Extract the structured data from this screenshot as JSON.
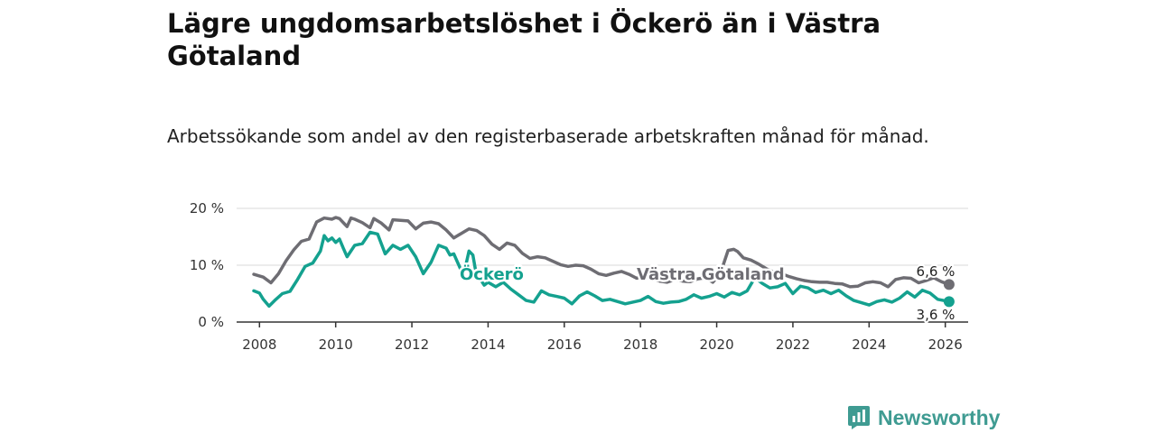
{
  "chart_data": {
    "type": "line",
    "title": "Lägre ungdomsarbetslöshet i Öckerö än i Västra Götaland",
    "subtitle": "Arbetssökande som andel av den registerbaserade arbetskraften månad för månad.",
    "xlabel": "",
    "ylabel": "",
    "xlim": [
      2007.4,
      2026.6
    ],
    "ylim": [
      0,
      20
    ],
    "grid": true,
    "yticks": [
      {
        "value": 0,
        "label": "0 %"
      },
      {
        "value": 10,
        "label": "10 %"
      },
      {
        "value": 20,
        "label": "20 %"
      }
    ],
    "xticks": [
      {
        "value": 2008,
        "label": "2008"
      },
      {
        "value": 2010,
        "label": "2010"
      },
      {
        "value": 2012,
        "label": "2012"
      },
      {
        "value": 2014,
        "label": "2014"
      },
      {
        "value": 2016,
        "label": "2016"
      },
      {
        "value": 2018,
        "label": "2018"
      },
      {
        "value": 2020,
        "label": "2020"
      },
      {
        "value": 2022,
        "label": "2022"
      },
      {
        "value": 2024,
        "label": "2024"
      },
      {
        "value": 2026,
        "label": "2026"
      }
    ],
    "series": [
      {
        "name": "Västra Götaland",
        "color": "#6e6d73",
        "end_label": "6,6 %",
        "x": [
          2007.85,
          2008.1,
          2008.3,
          2008.5,
          2008.7,
          2008.9,
          2009.1,
          2009.3,
          2009.5,
          2009.7,
          2009.9,
          2010.0,
          2010.1,
          2010.3,
          2010.4,
          2010.5,
          2010.7,
          2010.9,
          2011.0,
          2011.2,
          2011.4,
          2011.5,
          2011.7,
          2011.9,
          2012.1,
          2012.3,
          2012.5,
          2012.7,
          2012.9,
          2013.1,
          2013.3,
          2013.5,
          2013.7,
          2013.9,
          2014.1,
          2014.3,
          2014.5,
          2014.7,
          2014.9,
          2015.1,
          2015.3,
          2015.5,
          2015.7,
          2015.9,
          2016.1,
          2016.3,
          2016.5,
          2016.7,
          2016.9,
          2017.1,
          2017.3,
          2017.5,
          2017.7,
          2017.9,
          2018.1,
          2018.3,
          2018.5,
          2018.7,
          2018.9,
          2019.1,
          2019.3,
          2019.5,
          2019.7,
          2019.9,
          2020.1,
          2020.3,
          2020.45,
          2020.55,
          2020.7,
          2020.9,
          2021.1,
          2021.3,
          2021.5,
          2021.7,
          2021.9,
          2022.1,
          2022.3,
          2022.5,
          2022.7,
          2022.9,
          2023.1,
          2023.3,
          2023.5,
          2023.7,
          2023.9,
          2024.1,
          2024.3,
          2024.5,
          2024.7,
          2024.9,
          2025.1,
          2025.3,
          2025.5,
          2025.7,
          2025.9,
          2026.1
        ],
        "values": [
          8.4,
          7.9,
          6.9,
          8.5,
          10.8,
          12.7,
          14.2,
          14.6,
          17.6,
          18.3,
          18.1,
          18.4,
          18.2,
          16.8,
          18.3,
          18.1,
          17.5,
          16.6,
          18.2,
          17.4,
          16.2,
          18.0,
          17.9,
          17.8,
          16.4,
          17.4,
          17.6,
          17.3,
          16.2,
          14.8,
          15.6,
          16.4,
          16.1,
          15.2,
          13.7,
          12.8,
          13.9,
          13.5,
          12.1,
          11.2,
          11.5,
          11.3,
          10.7,
          10.1,
          9.8,
          10.0,
          9.9,
          9.3,
          8.5,
          8.2,
          8.6,
          8.9,
          8.4,
          7.7,
          8.1,
          7.5,
          7.2,
          7.0,
          7.5,
          7.2,
          7.1,
          7.6,
          7.8,
          7.0,
          8.6,
          12.6,
          12.8,
          12.4,
          11.3,
          10.9,
          10.2,
          9.4,
          8.8,
          8.5,
          8.0,
          7.6,
          7.3,
          7.1,
          7.0,
          7.0,
          6.8,
          6.7,
          6.2,
          6.3,
          6.9,
          7.1,
          6.9,
          6.2,
          7.5,
          7.8,
          7.7,
          6.9,
          7.3,
          7.8,
          7.1,
          6.6
        ]
      },
      {
        "name": "Öckerö",
        "color": "#14a18f",
        "end_label": "3,6 %",
        "x": [
          2007.85,
          2008.0,
          2008.1,
          2008.25,
          2008.4,
          2008.6,
          2008.8,
          2009.0,
          2009.2,
          2009.4,
          2009.6,
          2009.7,
          2009.8,
          2009.9,
          2010.0,
          2010.1,
          2010.2,
          2010.3,
          2010.5,
          2010.7,
          2010.9,
          2011.1,
          2011.3,
          2011.5,
          2011.7,
          2011.9,
          2012.1,
          2012.3,
          2012.5,
          2012.7,
          2012.9,
          2013.0,
          2013.1,
          2013.2,
          2013.3,
          2013.4,
          2013.5,
          2013.6,
          2013.7,
          2013.8,
          2013.9,
          2014.0,
          2014.2,
          2014.4,
          2014.6,
          2014.8,
          2015.0,
          2015.2,
          2015.4,
          2015.6,
          2015.8,
          2016.0,
          2016.2,
          2016.4,
          2016.6,
          2016.8,
          2017.0,
          2017.2,
          2017.4,
          2017.6,
          2017.8,
          2018.0,
          2018.2,
          2018.4,
          2018.6,
          2018.8,
          2019.0,
          2019.2,
          2019.4,
          2019.6,
          2019.8,
          2020.0,
          2020.2,
          2020.4,
          2020.6,
          2020.8,
          2021.0,
          2021.2,
          2021.4,
          2021.6,
          2021.8,
          2022.0,
          2022.2,
          2022.4,
          2022.6,
          2022.8,
          2023.0,
          2023.2,
          2023.4,
          2023.6,
          2023.8,
          2024.0,
          2024.2,
          2024.4,
          2024.6,
          2024.8,
          2025.0,
          2025.2,
          2025.4,
          2025.6,
          2025.8,
          2026.1
        ],
        "values": [
          5.5,
          5.1,
          4.0,
          2.8,
          3.8,
          5.0,
          5.4,
          7.5,
          9.8,
          10.4,
          12.5,
          15.2,
          14.3,
          14.8,
          14.0,
          14.6,
          13.0,
          11.5,
          13.5,
          13.8,
          15.8,
          15.5,
          12.0,
          13.5,
          12.8,
          13.5,
          11.5,
          8.5,
          10.5,
          13.5,
          13.0,
          11.8,
          12.0,
          10.5,
          9.0,
          9.5,
          12.5,
          11.8,
          8.0,
          7.5,
          6.5,
          7.0,
          6.2,
          7.0,
          5.8,
          4.8,
          3.8,
          3.5,
          5.5,
          4.8,
          4.5,
          4.2,
          3.2,
          4.6,
          5.3,
          4.6,
          3.8,
          4.0,
          3.6,
          3.2,
          3.5,
          3.8,
          4.5,
          3.6,
          3.3,
          3.5,
          3.6,
          4.0,
          4.8,
          4.2,
          4.5,
          5.0,
          4.4,
          5.2,
          4.8,
          5.5,
          7.8,
          6.8,
          6.0,
          6.2,
          6.8,
          5.0,
          6.3,
          6.0,
          5.2,
          5.6,
          5.0,
          5.6,
          4.6,
          3.8,
          3.4,
          3.0,
          3.6,
          3.9,
          3.5,
          4.2,
          5.3,
          4.4,
          5.6,
          5.1,
          4.0,
          3.6
        ]
      }
    ]
  },
  "brand": {
    "name": "Newsworthy",
    "icon": "newsworthy-logo-icon"
  }
}
